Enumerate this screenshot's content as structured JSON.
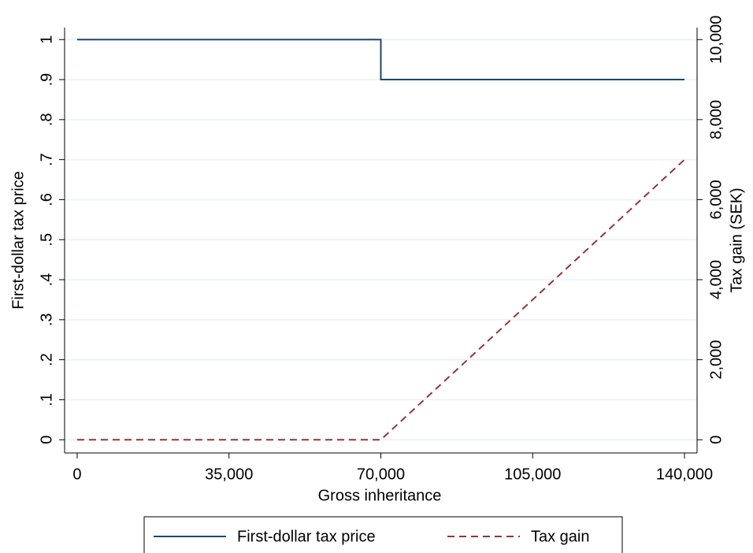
{
  "chart_data": {
    "type": "line",
    "xlabel": "Gross inheritance",
    "ylabel": "First-dollar tax price",
    "y2label": "Tax gain (SEK)",
    "xlim": [
      -2900,
      142900
    ],
    "xticks": [
      0,
      {
        "value": 35000,
        "label": "35,000"
      },
      {
        "value": 70000,
        "label": "70,000"
      },
      {
        "value": 105000,
        "label": "105,000"
      },
      {
        "value": 140000,
        "label": "140,000"
      }
    ],
    "ylim": [
      -0.033,
      1.03
    ],
    "yticks": [
      0,
      {
        "value": 0.1,
        "label": ".1"
      },
      {
        "value": 0.2,
        "label": ".2"
      },
      {
        "value": 0.3,
        "label": ".3"
      },
      {
        "value": 0.4,
        "label": ".4"
      },
      {
        "value": 0.5,
        "label": ".5"
      },
      {
        "value": 0.6,
        "label": ".6"
      },
      {
        "value": 0.7,
        "label": ".7"
      },
      {
        "value": 0.8,
        "label": ".8"
      },
      {
        "value": 0.9,
        "label": ".9"
      },
      1
    ],
    "y2lim": [
      -330,
      10300
    ],
    "y2ticks": [
      0,
      {
        "value": 2000,
        "label": "2,000"
      },
      {
        "value": 4000,
        "label": "4,000"
      },
      {
        "value": 6000,
        "label": "6,000"
      },
      {
        "value": 8000,
        "label": "8,000"
      },
      {
        "value": 10000,
        "label": "10,000"
      }
    ],
    "grid": true,
    "legend": "bottom",
    "series": [
      {
        "name": "First-dollar tax price",
        "color": "#1a476f",
        "dash": false,
        "x": [
          0,
          70000,
          70000,
          140000
        ],
        "values": [
          1,
          1,
          0.9,
          0.9
        ]
      },
      {
        "name": "Tax gain",
        "color": "#90353b",
        "dash": true,
        "axis": "y2",
        "x": [
          0,
          70000,
          140000
        ],
        "values": [
          0,
          0,
          7000
        ]
      }
    ]
  }
}
